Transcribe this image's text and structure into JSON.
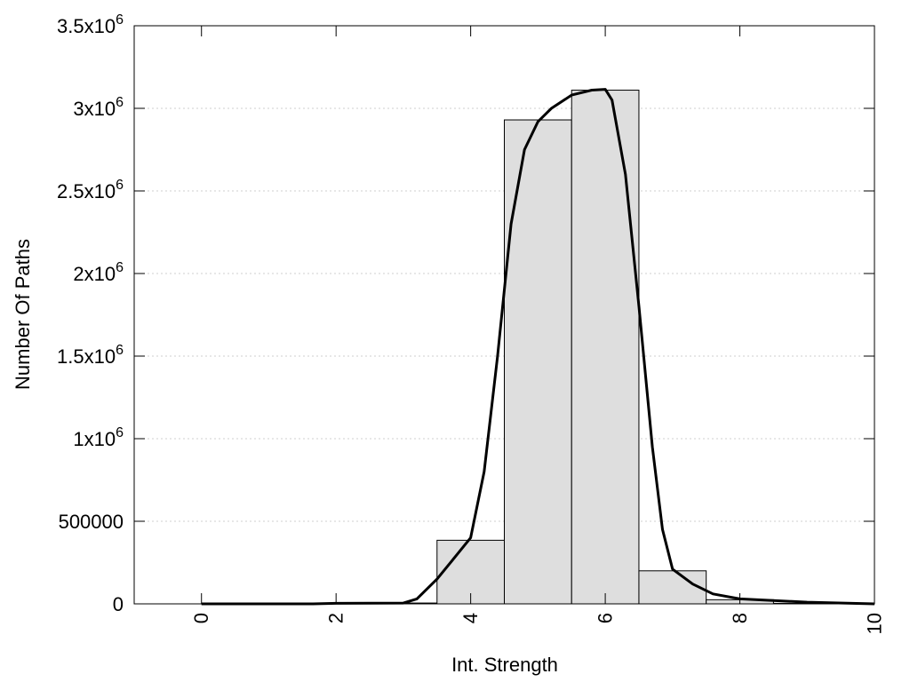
{
  "chart_data": {
    "type": "bar",
    "xlabel": "Int. Strength",
    "ylabel": "Number Of Paths",
    "xlim": [
      -1,
      10
    ],
    "ylim": [
      0,
      3500000
    ],
    "grid": true,
    "x_ticks": [
      {
        "value": 0,
        "label": "0"
      },
      {
        "value": 2,
        "label": "2"
      },
      {
        "value": 4,
        "label": "4"
      },
      {
        "value": 6,
        "label": "6"
      },
      {
        "value": 8,
        "label": "8"
      },
      {
        "value": 10,
        "label": "10"
      }
    ],
    "y_ticks": [
      {
        "value": 0,
        "base": "0",
        "exp": ""
      },
      {
        "value": 500000,
        "base": "500000",
        "exp": ""
      },
      {
        "value": 1000000,
        "base": "1x10",
        "exp": "6"
      },
      {
        "value": 1500000,
        "base": "1.5x10",
        "exp": "6"
      },
      {
        "value": 2000000,
        "base": "2x10",
        "exp": "6"
      },
      {
        "value": 2500000,
        "base": "2.5x10",
        "exp": "6"
      },
      {
        "value": 3000000,
        "base": "3x10",
        "exp": "6"
      },
      {
        "value": 3500000,
        "base": "3.5x10",
        "exp": "6"
      }
    ],
    "bar_width": 1,
    "bars": [
      {
        "x": 0,
        "value": 0
      },
      {
        "x": 1,
        "value": 0
      },
      {
        "x": 2,
        "value": 0
      },
      {
        "x": 3,
        "value": 5000
      },
      {
        "x": 4,
        "value": 385000
      },
      {
        "x": 5,
        "value": 2930000
      },
      {
        "x": 6,
        "value": 3110000
      },
      {
        "x": 7,
        "value": 200000
      },
      {
        "x": 8,
        "value": 25000
      },
      {
        "x": 9,
        "value": 3000
      }
    ],
    "curve": {
      "x": [
        0,
        1,
        1.66,
        2,
        3,
        3.2,
        3.5,
        3.8,
        4,
        4.2,
        4.4,
        4.6,
        4.8,
        5,
        5.2,
        5.5,
        5.8,
        6,
        6.1,
        6.3,
        6.5,
        6.7,
        6.85,
        7,
        7.3,
        7.6,
        8,
        9,
        10
      ],
      "y": [
        0,
        0,
        0,
        3000,
        5000,
        30000,
        150000,
        300000,
        400000,
        800000,
        1500000,
        2300000,
        2750000,
        2920000,
        3000000,
        3080000,
        3110000,
        3115000,
        3050000,
        2600000,
        1800000,
        950000,
        450000,
        210000,
        120000,
        60000,
        30000,
        10000,
        0
      ]
    }
  }
}
